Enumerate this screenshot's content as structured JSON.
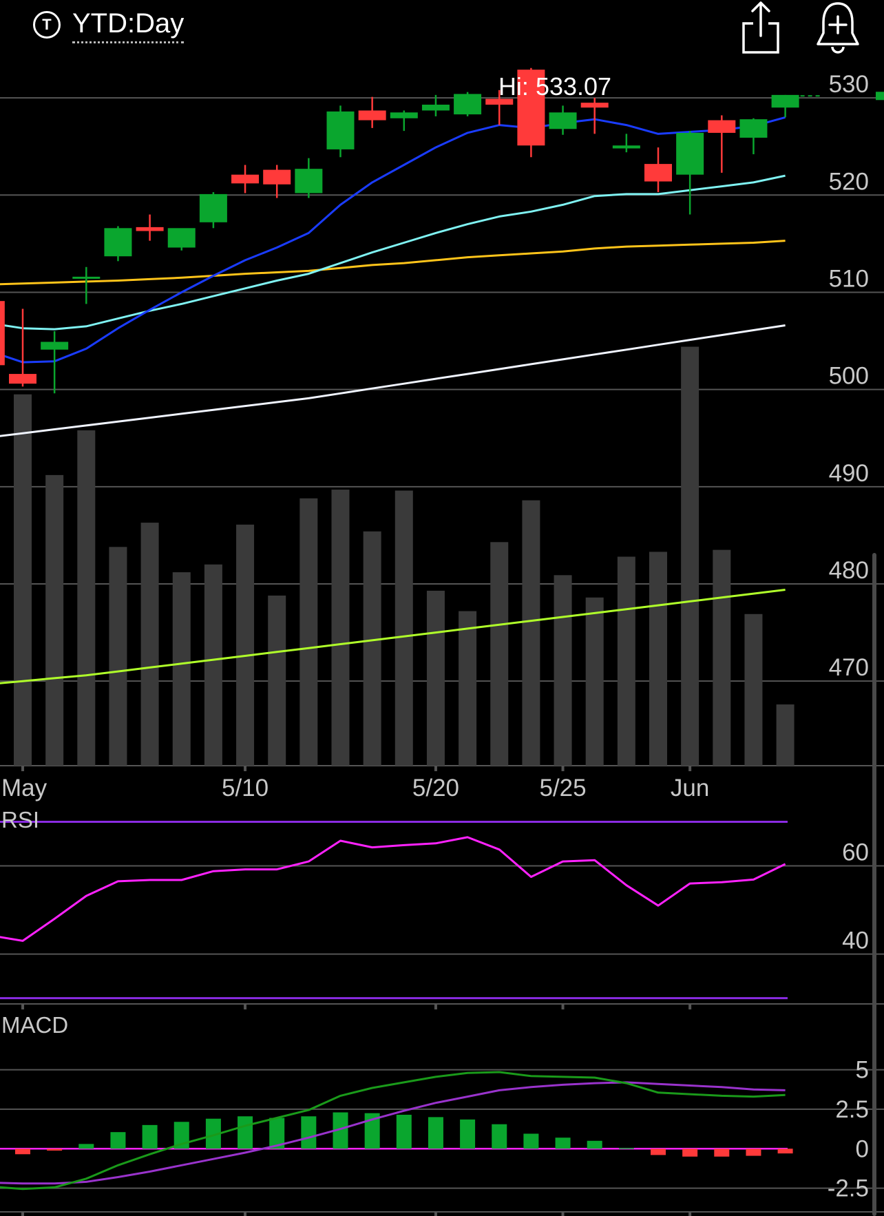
{
  "header": {
    "ticker_icon": "T",
    "range_label": "YTD:Day",
    "share_icon": "share-icon",
    "alert_icon": "bell-plus-icon"
  },
  "colors": {
    "up": "#0aa62e",
    "down": "#ff3a3a",
    "volume": "#3a3a3a",
    "grid": "#555555",
    "sma_fast": "#1a3cff",
    "sma_mid": "#7ff2f2",
    "sma_slow": "#ffc41a",
    "sma_long": "#f0f4ff",
    "volume_ma": "#b0ff2a",
    "rsi_line": "#ff22ff",
    "rsi_band": "#8a2be2",
    "macd_line": "#1a9a1a",
    "signal_line": "#9933cc",
    "zero_line": "#ff22ff"
  },
  "chart_data": [
    {
      "type": "candlestick",
      "hi_label": "Hi: 533.07",
      "y_ticks": [
        530,
        520,
        510,
        500,
        490,
        480,
        470
      ],
      "ylim": [
        461.3,
        534.4
      ],
      "x_ticks": [
        {
          "label": "May",
          "index": 0
        },
        {
          "label": "5/10",
          "index": 7
        },
        {
          "label": "5/20",
          "index": 13
        },
        {
          "label": "5/25",
          "index": 17
        },
        {
          "label": "Jun",
          "index": 21
        }
      ],
      "dates_index": [
        -1,
        0,
        1,
        2,
        3,
        4,
        5,
        6,
        7,
        8,
        9,
        10,
        11,
        12,
        13,
        14,
        15,
        16,
        17,
        18,
        19,
        20,
        21,
        22,
        23,
        24
      ],
      "candles": [
        {
          "o": 509.1,
          "h": 510.8,
          "l": 502.3,
          "c": 502.5
        },
        {
          "o": 501.6,
          "h": 508.3,
          "l": 500.3,
          "c": 500.6
        },
        {
          "o": 504.1,
          "h": 506.0,
          "l": 499.6,
          "c": 504.9
        },
        {
          "o": 511.4,
          "h": 512.6,
          "l": 508.8,
          "c": 511.6
        },
        {
          "o": 513.7,
          "h": 516.8,
          "l": 513.2,
          "c": 516.6
        },
        {
          "o": 516.7,
          "h": 518.0,
          "l": 515.3,
          "c": 516.3
        },
        {
          "o": 514.6,
          "h": 516.3,
          "l": 514.3,
          "c": 516.6
        },
        {
          "o": 517.2,
          "h": 520.3,
          "l": 516.6,
          "c": 520.1
        },
        {
          "o": 522.1,
          "h": 523.1,
          "l": 520.2,
          "c": 521.2
        },
        {
          "o": 522.6,
          "h": 523.1,
          "l": 519.7,
          "c": 521.1
        },
        {
          "o": 520.2,
          "h": 523.8,
          "l": 519.7,
          "c": 522.7
        },
        {
          "o": 524.7,
          "h": 529.2,
          "l": 523.9,
          "c": 528.6
        },
        {
          "o": 528.7,
          "h": 530.1,
          "l": 526.9,
          "c": 527.7
        },
        {
          "o": 527.9,
          "h": 528.7,
          "l": 526.6,
          "c": 528.5
        },
        {
          "o": 528.7,
          "h": 530.3,
          "l": 528.1,
          "c": 529.3
        },
        {
          "o": 528.3,
          "h": 530.6,
          "l": 528.1,
          "c": 530.4
        },
        {
          "o": 529.9,
          "h": 530.8,
          "l": 527.2,
          "c": 529.3
        },
        {
          "o": 532.9,
          "h": 533.07,
          "l": 523.9,
          "c": 525.1
        },
        {
          "o": 526.8,
          "h": 529.2,
          "l": 526.2,
          "c": 528.5
        },
        {
          "o": 529.5,
          "h": 530.0,
          "l": 526.3,
          "c": 529.0
        },
        {
          "o": 524.8,
          "h": 526.3,
          "l": 524.4,
          "c": 525.1
        },
        {
          "o": 523.2,
          "h": 524.9,
          "l": 520.3,
          "c": 521.4
        },
        {
          "o": 522.1,
          "h": 526.6,
          "l": 518.0,
          "c": 526.4
        },
        {
          "o": 527.7,
          "h": 528.2,
          "l": 522.3,
          "c": 526.4
        },
        {
          "o": 525.9,
          "h": 527.9,
          "l": 524.2,
          "c": 527.8
        },
        {
          "o": 529.0,
          "h": 530.3,
          "l": 528.0,
          "c": 530.3
        }
      ],
      "last_price_marker": 530.2,
      "volume": [
        497,
        499.5,
        491.2,
        495.8,
        483.8,
        486.3,
        481.2,
        482.0,
        486.1,
        478.8,
        488.8,
        489.7,
        485.4,
        489.6,
        479.3,
        477.2,
        484.3,
        488.6,
        480.9,
        478.6,
        482.8,
        483.3,
        504.4,
        483.5,
        476.9,
        467.6
      ],
      "volume_ma": [
        469.7,
        470.0,
        470.3,
        470.6,
        471.0,
        471.4,
        471.8,
        472.2,
        472.6,
        473.0,
        473.4,
        473.8,
        474.2,
        474.6,
        475.0,
        475.4,
        475.8,
        476.2,
        476.6,
        477.0,
        477.4,
        477.8,
        478.2,
        478.6,
        479.0,
        479.4
      ],
      "sma_fast": [
        503.9,
        502.8,
        502.9,
        504.2,
        506.3,
        508.2,
        510.0,
        511.7,
        513.3,
        514.6,
        516.1,
        519.0,
        521.3,
        523.1,
        524.9,
        526.4,
        527.2,
        526.9,
        527.4,
        527.8,
        527.2,
        526.3,
        526.5,
        526.7,
        527.1,
        528.0
      ],
      "sma_mid": [
        506.8,
        506.3,
        506.2,
        506.5,
        507.3,
        508.1,
        508.8,
        509.6,
        510.4,
        511.2,
        511.9,
        513.0,
        514.1,
        515.1,
        516.1,
        517.0,
        517.8,
        518.3,
        519.0,
        519.9,
        520.1,
        520.1,
        520.5,
        520.9,
        521.3,
        522.0
      ],
      "sma_slow": [
        510.8,
        510.9,
        511.0,
        511.1,
        511.2,
        511.35,
        511.5,
        511.7,
        511.9,
        512.05,
        512.2,
        512.5,
        512.8,
        513.0,
        513.3,
        513.6,
        513.8,
        514.0,
        514.2,
        514.5,
        514.7,
        514.8,
        514.9,
        515.0,
        515.1,
        515.3
      ],
      "sma_long": [
        495.1,
        495.5,
        495.9,
        496.3,
        496.7,
        497.1,
        497.5,
        497.9,
        498.3,
        498.7,
        499.1,
        499.6,
        500.1,
        500.6,
        501.1,
        501.6,
        502.1,
        502.6,
        503.1,
        503.6,
        504.1,
        504.6,
        505.1,
        505.6,
        506.1,
        506.6
      ]
    },
    {
      "type": "line",
      "title": "RSI",
      "y_ticks": [
        60,
        40
      ],
      "ylim": [
        28.7,
        72.1
      ],
      "bands": [
        70,
        30
      ],
      "values": [
        44.2,
        43.0,
        48.0,
        53.2,
        56.5,
        56.8,
        56.8,
        58.8,
        59.2,
        59.2,
        61.0,
        65.7,
        64.2,
        64.7,
        65.1,
        66.5,
        63.7,
        57.5,
        61.0,
        61.3,
        55.6,
        51.0,
        56.0,
        56.3,
        56.9,
        60.4
      ]
    },
    {
      "type": "bar",
      "title": "MACD",
      "y_ticks": [
        5,
        2.5,
        0,
        -2.5
      ],
      "ylim": [
        -4.0,
        6.9
      ],
      "histogram": [
        -0.18,
        -0.35,
        -0.12,
        0.3,
        1.05,
        1.5,
        1.7,
        1.9,
        2.05,
        1.95,
        2.05,
        2.3,
        2.25,
        2.15,
        2.0,
        1.85,
        1.55,
        0.95,
        0.7,
        0.5,
        0.05,
        -0.4,
        -0.5,
        -0.5,
        -0.45,
        -0.3
      ],
      "macd_line": [
        -2.4,
        -2.55,
        -2.45,
        -1.9,
        -1.05,
        -0.35,
        0.3,
        0.85,
        1.45,
        1.95,
        2.45,
        3.35,
        3.85,
        4.2,
        4.55,
        4.8,
        4.85,
        4.6,
        4.55,
        4.5,
        4.15,
        3.55,
        3.45,
        3.35,
        3.3,
        3.4
      ],
      "signal_line": [
        -2.15,
        -2.2,
        -2.2,
        -2.1,
        -1.8,
        -1.45,
        -1.05,
        -0.65,
        -0.25,
        0.2,
        0.7,
        1.25,
        1.85,
        2.4,
        2.9,
        3.3,
        3.7,
        3.9,
        4.05,
        4.15,
        4.2,
        4.1,
        4.0,
        3.9,
        3.75,
        3.7
      ]
    }
  ]
}
